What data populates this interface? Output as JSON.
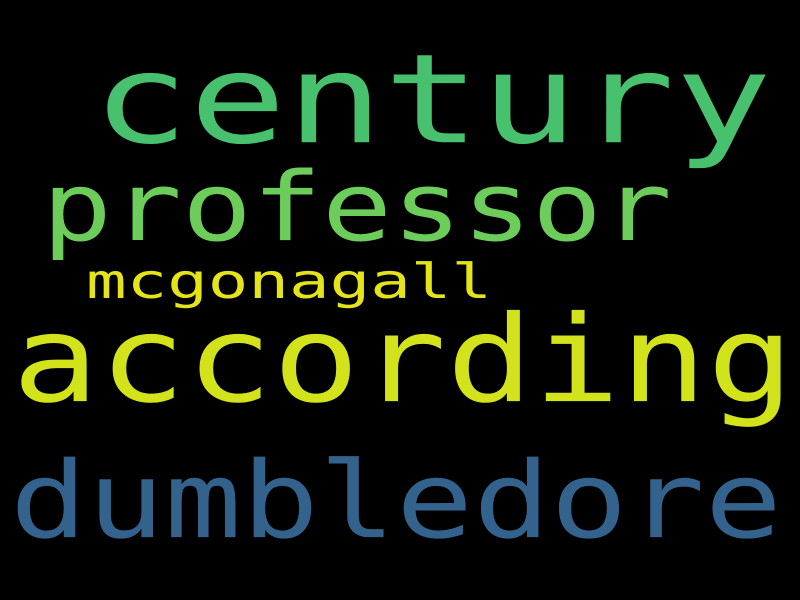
{
  "background": "#000000",
  "words": [
    {
      "text": "century",
      "color": "#48C16E"
    },
    {
      "text": "professor",
      "color": "#6CCD5A"
    },
    {
      "text": "mcgonagall",
      "color": "#E5E419"
    },
    {
      "text": "according",
      "color": "#D2E21B"
    },
    {
      "text": "dumbledore",
      "color": "#33638D"
    }
  ]
}
